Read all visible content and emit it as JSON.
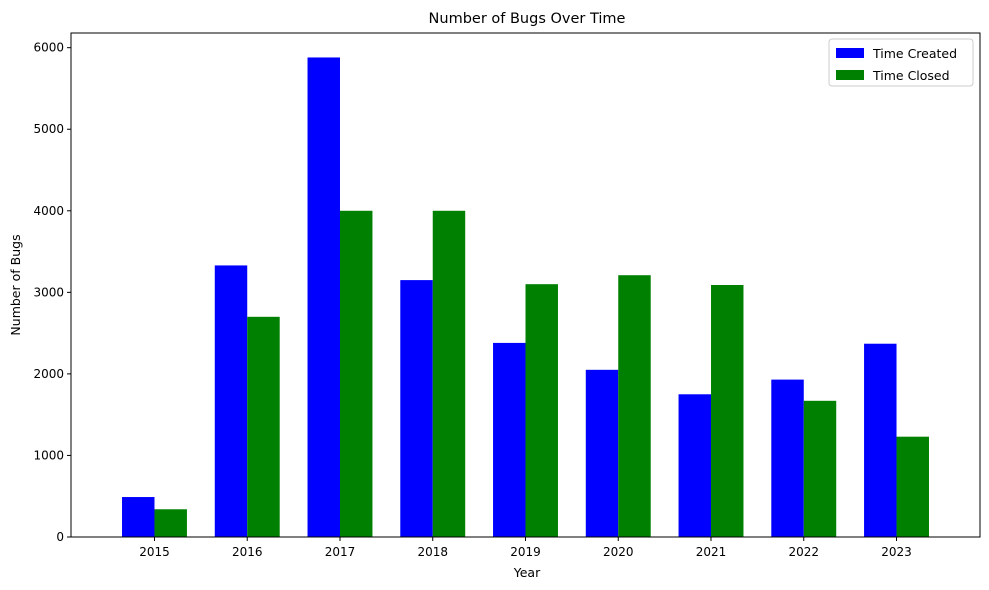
{
  "chart_data": {
    "type": "bar",
    "title": "Number of Bugs Over Time",
    "xlabel": "Year",
    "ylabel": "Number of Bugs",
    "categories": [
      "2015",
      "2016",
      "2017",
      "2018",
      "2019",
      "2020",
      "2021",
      "2022",
      "2023"
    ],
    "series": [
      {
        "name": "Time Created",
        "color": "#0000ff",
        "values": [
          490,
          3330,
          5880,
          3150,
          2380,
          2050,
          1750,
          1930,
          2370
        ]
      },
      {
        "name": "Time Closed",
        "color": "#008000",
        "values": [
          340,
          2700,
          4000,
          4000,
          3100,
          3210,
          3090,
          1670,
          1230
        ]
      }
    ],
    "ylim": [
      0,
      6180
    ],
    "yticks": [
      0,
      1000,
      2000,
      3000,
      4000,
      5000,
      6000
    ],
    "grid": false,
    "legend_position": "top-right"
  }
}
